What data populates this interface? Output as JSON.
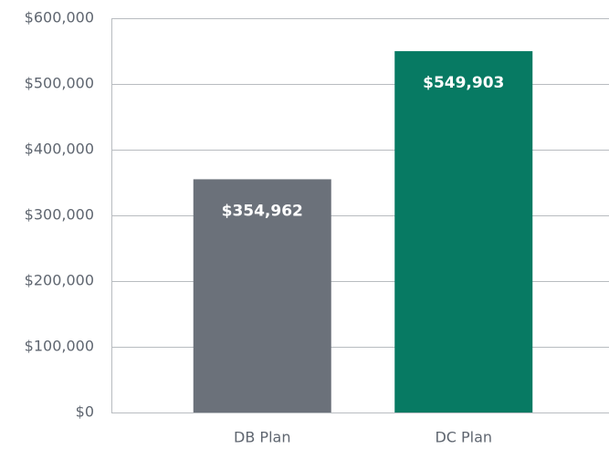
{
  "chart_data": {
    "type": "bar",
    "categories": [
      "DB Plan",
      "DC Plan"
    ],
    "values": [
      354962,
      549903
    ],
    "value_labels": [
      "$354,962",
      "$549,903"
    ],
    "colors": [
      "#6b717a",
      "#077a63"
    ],
    "ylim": [
      0,
      600000
    ],
    "yticks": [
      {
        "value": 0,
        "label": "$0"
      },
      {
        "value": 100000,
        "label": "$100,000"
      },
      {
        "value": 200000,
        "label": "$200,000"
      },
      {
        "value": 300000,
        "label": "$300,000"
      },
      {
        "value": 400000,
        "label": "$400,000"
      },
      {
        "value": 500000,
        "label": "$500,000"
      },
      {
        "value": 600000,
        "label": "$600,000"
      }
    ],
    "grid": true
  }
}
